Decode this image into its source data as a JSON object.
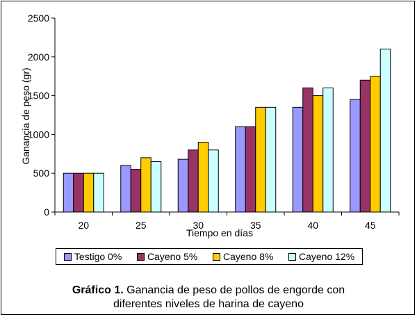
{
  "chart_data": {
    "type": "bar",
    "categories": [
      "20",
      "25",
      "30",
      "35",
      "40",
      "45"
    ],
    "series": [
      {
        "name": "Testigo 0%",
        "values": [
          500,
          600,
          680,
          1100,
          1350,
          1450
        ],
        "color": "#9999ff"
      },
      {
        "name": "Cayeno 5%",
        "values": [
          500,
          550,
          800,
          1100,
          1600,
          1700
        ],
        "color": "#993366"
      },
      {
        "name": "Cayeno 8%",
        "values": [
          500,
          700,
          900,
          1350,
          1500,
          1750
        ],
        "color": "#ffcc00"
      },
      {
        "name": "Cayeno 12%",
        "values": [
          500,
          650,
          800,
          1350,
          1600,
          2100
        ],
        "color": "#ccffff"
      }
    ],
    "xlabel": "Tiempo en días",
    "ylabel": "Ganancia de peso (gr)",
    "ylim": [
      0,
      2500
    ],
    "yticks": [
      "0",
      "500",
      "1000",
      "1500",
      "2000",
      "2500"
    ],
    "legend_position": "bottom"
  },
  "caption": {
    "bold": "Gráfico 1.",
    "line1": " Ganancia de peso de pollos de engorde con",
    "line2": "diferentes niveles de harina de cayeno"
  }
}
